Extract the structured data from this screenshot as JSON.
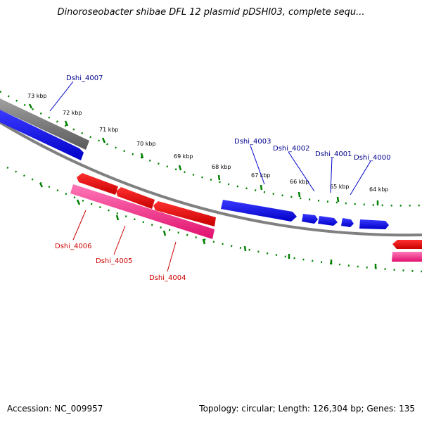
{
  "title": "Dinoroseobacter shibae DFL 12 plasmid pDSHI03, complete sequ...",
  "footer": {
    "accession": "Accession: NC_009957",
    "summary": "Topology: circular; Length: 126,304 bp; Genes: 135"
  },
  "colors": {
    "forward_gene": "#0000ff",
    "reverse_gene": "#ff0000",
    "reverse_cds": "#ff1493",
    "forward_cds_other": "#7a7a7a",
    "backbone": "#808080",
    "ticks": "#008000",
    "forward_label": "#00008b",
    "reverse_label": "#cc0000"
  },
  "ticks": [
    "73 kbp",
    "72 kbp",
    "71 kbp",
    "70 kbp",
    "69 kbp",
    "68 kbp",
    "67 kbp",
    "66 kbp",
    "65 kbp",
    "64 kbp"
  ],
  "genes": {
    "forward": [
      "Dshi_4007",
      "Dshi_4003",
      "Dshi_4002",
      "Dshi_4001",
      "Dshi_4000"
    ],
    "reverse": [
      "Dshi_4006",
      "Dshi_4005",
      "Dshi_4004"
    ]
  }
}
